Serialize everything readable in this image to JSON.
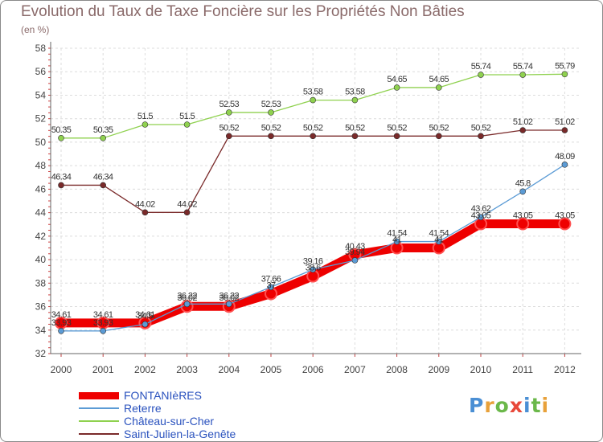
{
  "title": "Evolution du Taux de Taxe Foncière sur les Propriétés Non Bâties",
  "subtitle": "(en %)",
  "logo": {
    "text": "Proxiti",
    "colors": [
      "#4a8fd4",
      "#e8a13a",
      "#6bb84a",
      "#e8483a",
      "#4a8fd4",
      "#6bb84a",
      "#e8a13a"
    ]
  },
  "chart_data": {
    "type": "line",
    "title": "Evolution du Taux de Taxe Foncière sur les Propriétés Non Bâties",
    "ylabel": "(en %)",
    "xlabel": "",
    "ylim": [
      32,
      58
    ],
    "yticks": [
      32,
      34,
      36,
      38,
      40,
      42,
      44,
      46,
      48,
      50,
      52,
      54,
      56,
      58
    ],
    "grid": true,
    "categories": [
      "2000",
      "2001",
      "2002",
      "2003",
      "2004",
      "2005",
      "2006",
      "2007",
      "2008",
      "2009",
      "2010",
      "2011",
      "2012"
    ],
    "series": [
      {
        "name": "FONTANIèRES",
        "color": "#ee0000",
        "values": [
          34.61,
          34.61,
          34.61,
          36.02,
          36.02,
          37.1,
          38.6,
          40.43,
          41.0,
          41.0,
          43.05,
          43.05,
          43.05
        ],
        "labels": [
          "34.61",
          "34.61",
          "34.61",
          "36.02",
          "36.02",
          "37",
          "38.6",
          "40.43",
          "41",
          "41",
          "43.05",
          "43.05",
          "43.05"
        ]
      },
      {
        "name": "Reterre",
        "color": "#5b9bd5",
        "values": [
          33.93,
          33.93,
          34.5,
          36.22,
          36.22,
          37.66,
          39.16,
          39.94,
          41.54,
          41.54,
          43.62,
          45.8,
          48.09
        ],
        "labels": [
          "33.93",
          "33.93",
          "34.5",
          "36.22",
          "36.22",
          "37.66",
          "39.16",
          "39.94",
          "41.54",
          "41.54",
          "43.62",
          "45.8",
          "48.09"
        ]
      },
      {
        "name": "Château-sur-Cher",
        "color": "#8fd14f",
        "values": [
          50.35,
          50.35,
          51.5,
          51.5,
          52.53,
          52.53,
          53.58,
          53.58,
          54.65,
          54.65,
          55.74,
          55.74,
          55.79
        ],
        "labels": [
          "50.35",
          "50.35",
          "51.5",
          "51.5",
          "52.53",
          "52.53",
          "53.58",
          "53.58",
          "54.65",
          "54.65",
          "55.74",
          "55.74",
          "55.79"
        ]
      },
      {
        "name": "Saint-Julien-la-Genête",
        "color": "#7a2a2a",
        "values": [
          46.34,
          46.34,
          44.02,
          44.02,
          50.52,
          50.52,
          50.52,
          50.52,
          50.52,
          50.52,
          50.52,
          51.02,
          51.02
        ],
        "labels": [
          "46.34",
          "46.34",
          "44.02",
          "44.02",
          "50.52",
          "50.52",
          "50.52",
          "50.52",
          "50.52",
          "50.52",
          "50.52",
          "51.02",
          "51.02"
        ]
      }
    ],
    "legend_position": "bottom-left"
  }
}
